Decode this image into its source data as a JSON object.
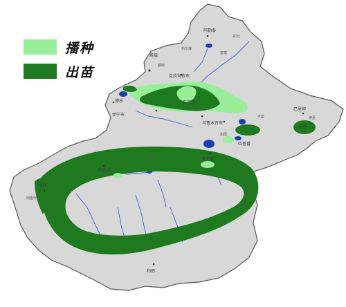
{
  "legend": {
    "items": [
      {
        "label": "播种",
        "color": "#99ee99"
      },
      {
        "label": "出苗",
        "color": "#1f7a1f"
      }
    ]
  },
  "colors": {
    "region_fill": "#d8d8d8",
    "region_border": "#555555",
    "river": "#3a5fd0",
    "lake": "#1a3fb0",
    "sowing": "#99ee99",
    "emergence": "#1f7a1f"
  },
  "places": {
    "c1": "阿勒泰",
    "c2": "博乐",
    "c3": "伊宁市",
    "c4": "石河子",
    "c5": "乌鲁木齐市",
    "c6": "哈密",
    "c7": "吐鲁番",
    "c8": "库尔勒",
    "c9": "阿克苏",
    "c10": "喀什",
    "c11": "和田",
    "c12": "克拉玛依市",
    "c13": "塔城",
    "c14": "巴里坤",
    "c15": "伊吾",
    "c16": "富蕴",
    "c17": "额敏",
    "c18": "阿图什市",
    "c19": "乌什",
    "c20": "库车",
    "c21": "和硕",
    "c22": "木垒",
    "c23": "布尔津",
    "c24": "青河"
  }
}
